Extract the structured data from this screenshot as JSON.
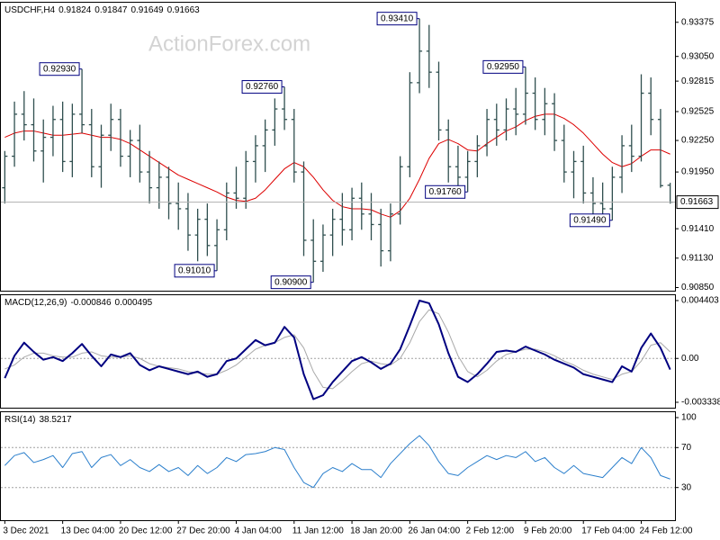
{
  "chart_data": [
    {
      "type": "ohlc",
      "title": "USDCHF,H4",
      "watermark": "ActionForex.com",
      "color": "#2f4f4f",
      "open": [
        0.918,
        0.921,
        0.925,
        0.924,
        0.9215,
        0.9228,
        0.9245,
        0.9205,
        0.925,
        0.924,
        0.92,
        0.923,
        0.9245,
        0.921,
        0.9225,
        0.9195,
        0.918,
        0.919,
        0.9165,
        0.916,
        0.9135,
        0.915,
        0.9125,
        0.914,
        0.9175,
        0.917,
        0.9205,
        0.922,
        0.9235,
        0.9255,
        0.9245,
        0.9195,
        0.913,
        0.911,
        0.9135,
        0.915,
        0.914,
        0.917,
        0.9155,
        0.9145,
        0.912,
        0.9155,
        0.92,
        0.928,
        0.931,
        0.929,
        0.9235,
        0.92,
        0.919,
        0.9205,
        0.922,
        0.9245,
        0.9235,
        0.9255,
        0.925,
        0.927,
        0.9245,
        0.926,
        0.9225,
        0.9195,
        0.9205,
        0.9175,
        0.9165,
        0.916,
        0.919,
        0.922,
        0.921,
        0.927,
        0.9245,
        0.91824
      ],
      "high": [
        0.9215,
        0.9262,
        0.9272,
        0.9265,
        0.9245,
        0.9258,
        0.9262,
        0.926,
        0.9293,
        0.9255,
        0.924,
        0.926,
        0.9255,
        0.9235,
        0.924,
        0.9215,
        0.9205,
        0.92,
        0.9185,
        0.9175,
        0.916,
        0.9165,
        0.915,
        0.9185,
        0.92,
        0.9215,
        0.923,
        0.9245,
        0.9265,
        0.9276,
        0.9255,
        0.9205,
        0.915,
        0.9145,
        0.916,
        0.9175,
        0.918,
        0.9185,
        0.9175,
        0.916,
        0.9165,
        0.921,
        0.929,
        0.9341,
        0.9335,
        0.93,
        0.9245,
        0.922,
        0.9215,
        0.923,
        0.9255,
        0.926,
        0.9265,
        0.9275,
        0.9295,
        0.9285,
        0.9275,
        0.927,
        0.924,
        0.9215,
        0.922,
        0.919,
        0.9185,
        0.92,
        0.923,
        0.924,
        0.9288,
        0.9285,
        0.9255,
        0.91847
      ],
      "low": [
        0.9165,
        0.92,
        0.9225,
        0.9205,
        0.9185,
        0.921,
        0.9195,
        0.919,
        0.9232,
        0.919,
        0.918,
        0.9215,
        0.92,
        0.919,
        0.9185,
        0.9165,
        0.916,
        0.915,
        0.914,
        0.912,
        0.911,
        0.9115,
        0.9101,
        0.913,
        0.916,
        0.916,
        0.9185,
        0.9195,
        0.922,
        0.9235,
        0.9185,
        0.9115,
        0.909,
        0.91,
        0.9115,
        0.9125,
        0.913,
        0.914,
        0.913,
        0.9105,
        0.911,
        0.9145,
        0.919,
        0.927,
        0.9275,
        0.9225,
        0.9185,
        0.918,
        0.9176,
        0.919,
        0.921,
        0.922,
        0.9225,
        0.923,
        0.924,
        0.9235,
        0.923,
        0.9215,
        0.9185,
        0.917,
        0.9165,
        0.9155,
        0.9152,
        0.9149,
        0.9175,
        0.9195,
        0.9205,
        0.923,
        0.918,
        0.91649
      ],
      "close": [
        0.921,
        0.925,
        0.924,
        0.9215,
        0.9228,
        0.9245,
        0.9205,
        0.925,
        0.924,
        0.92,
        0.923,
        0.9245,
        0.921,
        0.9225,
        0.9195,
        0.918,
        0.919,
        0.9165,
        0.916,
        0.9135,
        0.915,
        0.9125,
        0.914,
        0.9175,
        0.917,
        0.9205,
        0.922,
        0.9235,
        0.9255,
        0.9245,
        0.9195,
        0.913,
        0.911,
        0.9135,
        0.915,
        0.914,
        0.917,
        0.9155,
        0.9145,
        0.912,
        0.9155,
        0.92,
        0.928,
        0.931,
        0.929,
        0.9235,
        0.92,
        0.919,
        0.9205,
        0.922,
        0.9245,
        0.9235,
        0.9255,
        0.925,
        0.927,
        0.9245,
        0.926,
        0.9225,
        0.9195,
        0.9205,
        0.9175,
        0.9165,
        0.916,
        0.919,
        0.922,
        0.921,
        0.927,
        0.9245,
        0.9182,
        0.91663
      ],
      "overlay": {
        "color": "#dd0000",
        "values": [
          0.9228,
          0.9232,
          0.9234,
          0.9234,
          0.9232,
          0.923,
          0.923,
          0.9231,
          0.9232,
          0.923,
          0.9228,
          0.9228,
          0.9226,
          0.9222,
          0.9216,
          0.921,
          0.9204,
          0.9198,
          0.9192,
          0.9188,
          0.9184,
          0.918,
          0.9176,
          0.9171,
          0.9168,
          0.9167,
          0.917,
          0.9178,
          0.9188,
          0.9198,
          0.9204,
          0.92,
          0.919,
          0.9178,
          0.9168,
          0.9162,
          0.916,
          0.916,
          0.9159,
          0.9155,
          0.9152,
          0.9158,
          0.917,
          0.9188,
          0.9208,
          0.9222,
          0.9226,
          0.9222,
          0.9216,
          0.9215,
          0.9222,
          0.9228,
          0.9234,
          0.9238,
          0.9244,
          0.9248,
          0.925,
          0.925,
          0.9246,
          0.924,
          0.9232,
          0.9222,
          0.9212,
          0.9204,
          0.92,
          0.9203,
          0.921,
          0.9216,
          0.9216,
          0.9212
        ]
      },
      "annotations": [
        {
          "label": "0.92930",
          "value": 0.9293
        },
        {
          "label": "0.92760",
          "value": 0.9276
        },
        {
          "label": "0.93410",
          "value": 0.9341
        },
        {
          "label": "0.92950",
          "value": 0.9295
        },
        {
          "label": "0.91760",
          "value": 0.9176
        },
        {
          "label": "0.91490",
          "value": 0.9149
        },
        {
          "label": "0.91010",
          "value": 0.9101
        },
        {
          "label": "0.90900",
          "value": 0.909
        }
      ],
      "ylim": [
        0.9082,
        0.9357
      ],
      "yticks": [
        0.93375,
        {
          "value": 0.9305,
          "label": "0.93050"
        },
        0.92815,
        0.92525,
        {
          "value": 0.9225,
          "label": "0.92250"
        },
        {
          "value": 0.9195,
          "label": "0.91950"
        },
        {
          "value": 0.9141,
          "label": "0.91410"
        },
        {
          "value": 0.9113,
          "label": "0.91130"
        },
        {
          "value": 0.9085,
          "label": "0.90850"
        }
      ],
      "last_price_line": true
    },
    {
      "type": "line",
      "title": "MACD(12,26,9)",
      "series": [
        {
          "color": "#000080",
          "values": [
            -0.0015,
            0.0002,
            0.0012,
            0.0005,
            -0.0001,
            0.0001,
            -0.0002,
            0.0004,
            0.0011,
            0.0002,
            -0.0006,
            0.0003,
            0.0001,
            0.0004,
            -0.0005,
            -0.0009,
            -0.0006,
            -0.0008,
            -0.001,
            -0.0012,
            -0.001,
            -0.0014,
            -0.0012,
            -0.0002,
            0,
            0.0007,
            0.0014,
            0.001,
            0.0012,
            0.0024,
            0.0016,
            -0.0012,
            -0.0031,
            -0.0028,
            -0.0018,
            -0.001,
            -0.0002,
            0.0001,
            -0.0003,
            -0.0008,
            -0.0004,
            0.0007,
            0.0025,
            0.0044,
            0.0042,
            0.0026,
            0.0004,
            -0.0014,
            -0.0018,
            -0.0012,
            -0.0004,
            0.0005,
            0.0006,
            0.0005,
            0.0009,
            0.0006,
            0.0003,
            -0.0001,
            -0.0004,
            -0.0007,
            -0.0012,
            -0.0014,
            -0.0016,
            -0.0018,
            -0.0006,
            -0.001,
            0.0008,
            0.0019,
            0.0008,
            -0.000846
          ]
        },
        {
          "color": "#a9a9a9",
          "values": [
            -0.0008,
            -0.0005,
            0.0001,
            0.0004,
            0.0004,
            0.0002,
            0.0001,
            0.0001,
            0.0004,
            0.0005,
            0.0002,
            0.0001,
            0.0001,
            0.0002,
            0,
            -0.0004,
            -0.0006,
            -0.0007,
            -0.0008,
            -0.001,
            -0.0011,
            -0.0012,
            -0.0012,
            -0.0009,
            -0.0005,
            0.0001,
            0.0007,
            0.001,
            0.0012,
            0.0016,
            0.0018,
            0.0008,
            -0.001,
            -0.0022,
            -0.0023,
            -0.0017,
            -0.001,
            -0.0004,
            -0.0002,
            -0.0004,
            -0.0005,
            0,
            0.0012,
            0.0028,
            0.0037,
            0.0034,
            0.002,
            0.0002,
            -0.001,
            -0.0014,
            -0.0009,
            -0.0002,
            0.0003,
            0.0005,
            0.0007,
            0.0007,
            0.0005,
            0.0002,
            -0.0002,
            -0.0005,
            -0.0009,
            -0.0012,
            -0.0014,
            -0.0016,
            -0.0012,
            -0.001,
            -0.0002,
            0.001,
            0.0012,
            0.000495
          ]
        }
      ],
      "ylim": [
        -0.00375,
        0.00488
      ],
      "yticks": [
        0.004403,
        {
          "value": 0,
          "label": "0.00"
        },
        -0.003338
      ],
      "levels": [
        0
      ]
    },
    {
      "type": "line",
      "title": "RSI(14)",
      "series": [
        {
          "color": "#2b7fcc",
          "values": [
            52,
            62,
            65,
            55,
            58,
            62,
            50,
            64,
            66,
            50,
            60,
            63,
            52,
            58,
            50,
            46,
            53,
            46,
            50,
            42,
            52,
            44,
            50,
            60,
            56,
            63,
            64,
            66,
            70,
            68,
            50,
            35,
            30,
            44,
            50,
            46,
            54,
            48,
            48,
            40,
            54,
            64,
            74,
            82,
            72,
            56,
            44,
            42,
            50,
            56,
            62,
            58,
            62,
            60,
            66,
            56,
            60,
            50,
            44,
            52,
            44,
            42,
            40,
            50,
            60,
            54,
            70,
            60,
            42,
            38.5217
          ]
        }
      ],
      "ylim": [
        0,
        100
      ],
      "yticks": [
        100,
        70,
        30
      ],
      "levels": [
        70,
        30
      ],
      "categories": [
        "3 Dec 2021",
        null,
        null,
        null,
        null,
        null,
        "13 Dec 04:00",
        null,
        null,
        null,
        null,
        null,
        "20 Dec 12:00",
        null,
        null,
        null,
        null,
        null,
        "27 Dec 20:00",
        null,
        null,
        null,
        null,
        null,
        "4 Jan 04:00",
        null,
        null,
        null,
        null,
        null,
        "11 Jan 12:00",
        null,
        null,
        null,
        null,
        null,
        "18 Jan 20:00",
        null,
        null,
        null,
        null,
        null,
        "26 Jan 04:00",
        null,
        null,
        null,
        null,
        null,
        "2 Feb 12:00",
        null,
        null,
        null,
        null,
        null,
        "9 Feb 20:00",
        null,
        null,
        null,
        null,
        null,
        "17 Feb 04:00",
        null,
        null,
        null,
        null,
        null,
        "24 Feb 12:00",
        null,
        null,
        null
      ]
    }
  ]
}
